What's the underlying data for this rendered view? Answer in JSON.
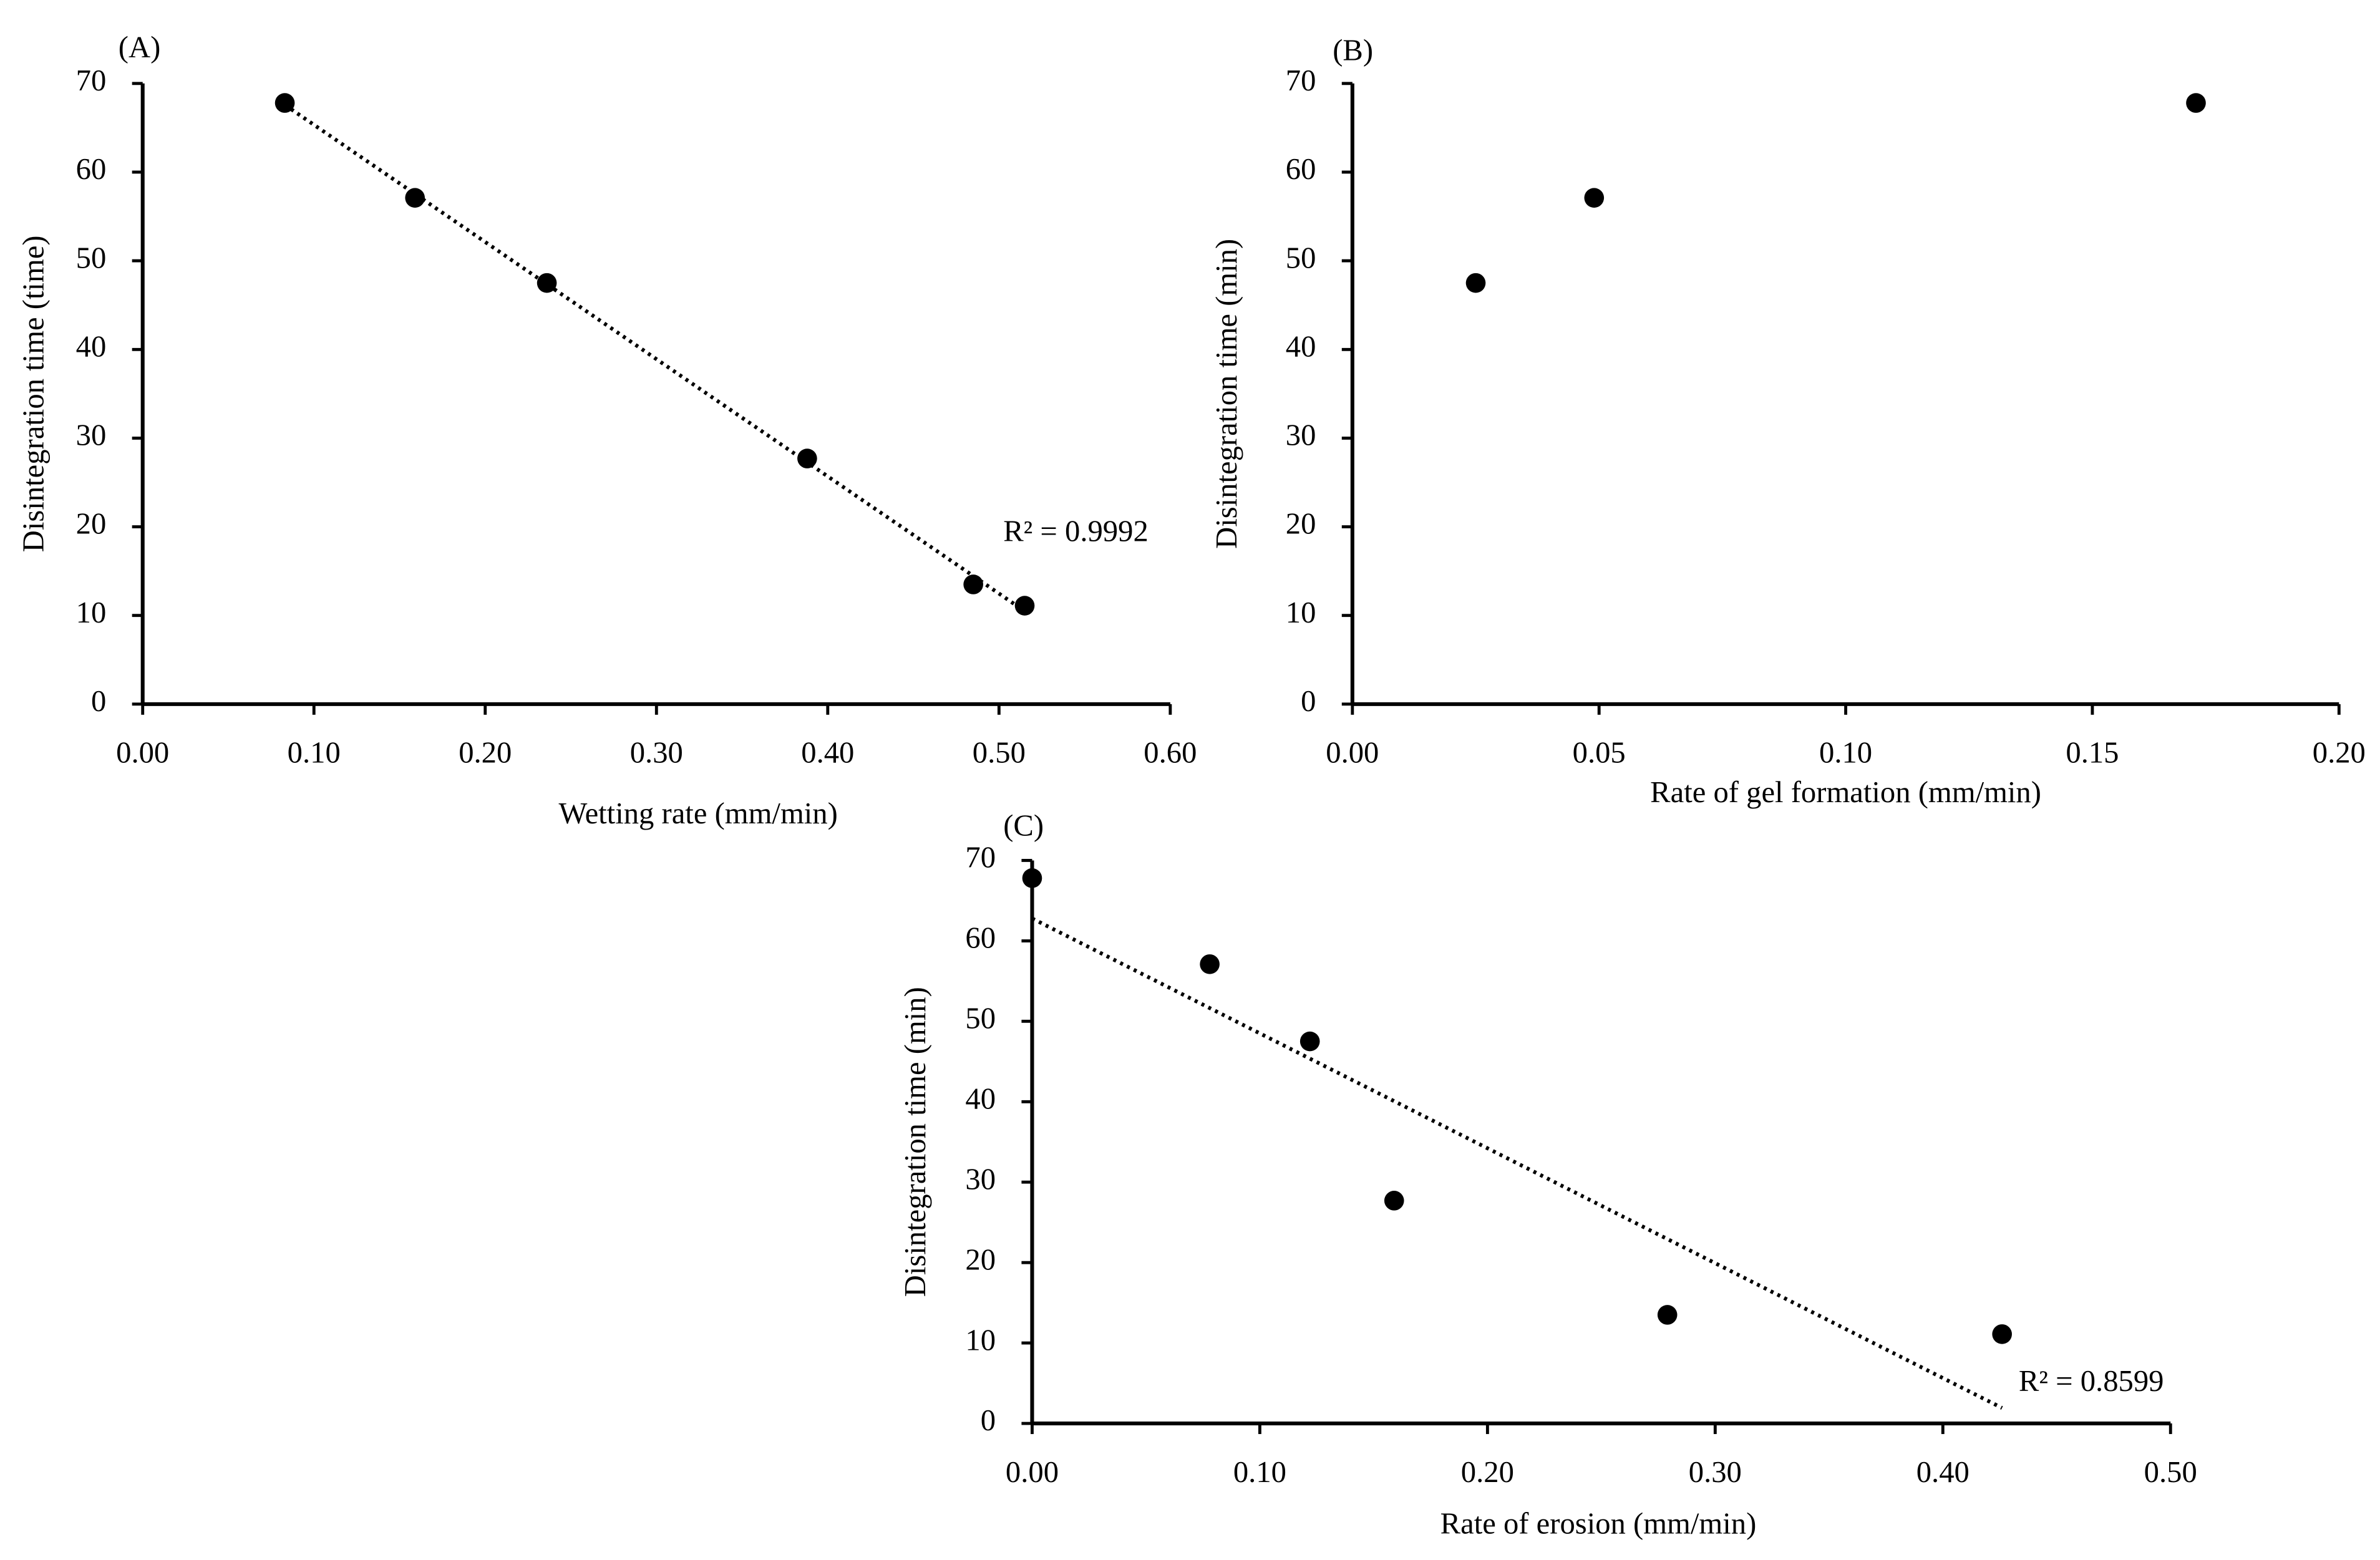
{
  "chart_data": [
    {
      "type": "scatter",
      "label": "(A)",
      "x_label": "Wetting rate (mm/min)",
      "y_label": "Disintegration time (time)",
      "x": [
        0.083,
        0.159,
        0.236,
        0.388,
        0.485,
        0.515
      ],
      "values": [
        67.8,
        57.1,
        47.5,
        27.7,
        13.5,
        11.1
      ],
      "color": "#000000",
      "xlim": [
        0,
        0.6
      ],
      "xticks": [
        {
          "value": 0,
          "label": "0.00"
        },
        {
          "value": 0.1,
          "label": "0.10"
        },
        {
          "value": 0.2,
          "label": "0.20"
        },
        {
          "value": 0.3,
          "label": "0.30"
        },
        {
          "value": 0.4,
          "label": "0.40"
        },
        {
          "value": 0.5,
          "label": "0.50"
        },
        {
          "value": 0.6,
          "label": "0.60"
        }
      ],
      "ylim": [
        0,
        70
      ],
      "yticks": [
        0,
        10,
        20,
        30,
        40,
        50,
        60,
        70
      ],
      "trendline": "linear",
      "annotation": "R² = 0.9992"
    },
    {
      "type": "scatter",
      "label": "(B)",
      "x_label": "Rate of gel formation (mm/min)",
      "y_label": "Disintegration time (min)",
      "x": [
        0.025,
        0.049,
        0.171
      ],
      "values": [
        47.5,
        57.1,
        67.8
      ],
      "color": "#000000",
      "xlim": [
        0,
        0.2
      ],
      "xticks": [
        {
          "value": 0,
          "label": "0.00"
        },
        {
          "value": 0.05,
          "label": "0.05"
        },
        {
          "value": 0.1,
          "label": "0.10"
        },
        {
          "value": 0.15,
          "label": "0.15"
        },
        {
          "value": 0.2,
          "label": "0.20"
        }
      ],
      "ylim": [
        0,
        70
      ],
      "yticks": [
        0,
        10,
        20,
        30,
        40,
        50,
        60,
        70
      ]
    },
    {
      "type": "scatter",
      "label": "(C)",
      "x_label": "Rate of erosion (mm/min)",
      "y_label": "Disintegration time (min)",
      "x": [
        0.0,
        0.078,
        0.122,
        0.159,
        0.279,
        0.426
      ],
      "values": [
        67.8,
        57.1,
        47.5,
        27.7,
        13.5,
        11.1
      ],
      "color": "#000000",
      "xlim": [
        0,
        0.5
      ],
      "xticks": [
        {
          "value": 0,
          "label": "0.00"
        },
        {
          "value": 0.1,
          "label": "0.10"
        },
        {
          "value": 0.2,
          "label": "0.20"
        },
        {
          "value": 0.3,
          "label": "0.30"
        },
        {
          "value": 0.4,
          "label": "0.40"
        },
        {
          "value": 0.5,
          "label": "0.50"
        }
      ],
      "ylim": [
        0,
        70
      ],
      "yticks": [
        0,
        10,
        20,
        30,
        40,
        50,
        60,
        70
      ],
      "trendline": "linear",
      "annotation": "R² = 0.8599"
    }
  ]
}
